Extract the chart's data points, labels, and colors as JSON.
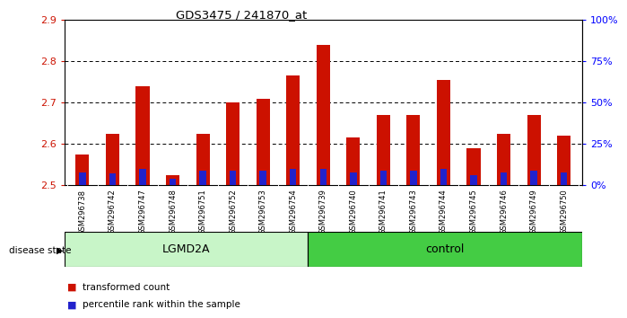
{
  "title": "GDS3475 / 241870_at",
  "samples": [
    "GSM296738",
    "GSM296742",
    "GSM296747",
    "GSM296748",
    "GSM296751",
    "GSM296752",
    "GSM296753",
    "GSM296754",
    "GSM296739",
    "GSM296740",
    "GSM296741",
    "GSM296743",
    "GSM296744",
    "GSM296745",
    "GSM296746",
    "GSM296749",
    "GSM296750"
  ],
  "transformed_count": [
    2.575,
    2.625,
    2.74,
    2.525,
    2.625,
    2.7,
    2.71,
    2.765,
    2.84,
    2.615,
    2.67,
    2.67,
    2.755,
    2.59,
    2.625,
    2.67,
    2.62
  ],
  "percentile_rank": [
    8,
    7,
    10,
    4,
    9,
    9,
    9,
    10,
    10,
    8,
    9,
    9,
    10,
    6,
    8,
    9,
    8
  ],
  "base": 2.5,
  "ylim_left": [
    2.5,
    2.9
  ],
  "ylim_right": [
    0,
    100
  ],
  "yticks_left": [
    2.5,
    2.6,
    2.7,
    2.8,
    2.9
  ],
  "yticks_right": [
    0,
    25,
    50,
    75,
    100
  ],
  "ytick_labels_right": [
    "0%",
    "25%",
    "50%",
    "75%",
    "100%"
  ],
  "groups": [
    {
      "label": "LGMD2A",
      "color": "#c8f5c8",
      "start": 0,
      "end": 8
    },
    {
      "label": "control",
      "color": "#44cc44",
      "start": 8,
      "end": 17
    }
  ],
  "disease_state_label": "disease state",
  "bar_color_red": "#cc1100",
  "bar_color_blue": "#2222cc",
  "legend_items": [
    {
      "label": "transformed count",
      "color": "#cc1100"
    },
    {
      "label": "percentile rank within the sample",
      "color": "#2222cc"
    }
  ],
  "bar_width": 0.45,
  "blue_bar_width": 0.22
}
